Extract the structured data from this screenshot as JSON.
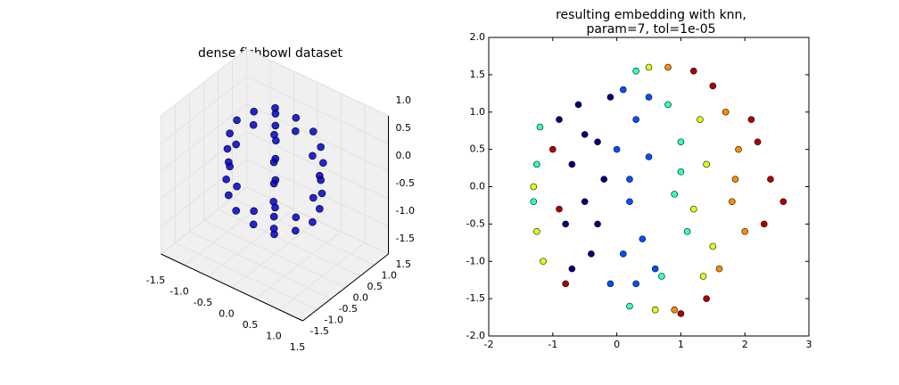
{
  "chart_data": [
    {
      "type": "scatter3d",
      "title": "dense fishbowl dataset",
      "color": "#0000cc",
      "xlim": [
        -1.5,
        1.5
      ],
      "ylim": [
        -1.5,
        1.5
      ],
      "zlim": [
        -1.5,
        1.0
      ],
      "xticks": [
        -1.5,
        {
          "value": -1,
          "label": "-1.0"
        },
        -0.5,
        {
          "value": 0,
          "label": "0.0"
        },
        0.5,
        {
          "value": 1,
          "label": "1.0"
        },
        1.5
      ],
      "yticks": [
        -1.5,
        {
          "value": -1,
          "label": "-1.0"
        },
        -0.5,
        {
          "value": 0,
          "label": "0.0"
        },
        0.5,
        {
          "value": 1,
          "label": "1.0"
        },
        1.5
      ],
      "zticks": [
        -1.5,
        {
          "value": -1,
          "label": "-1.0"
        },
        -0.5,
        {
          "value": 0,
          "label": "0.0"
        },
        0.5,
        {
          "value": 1,
          "label": "1.0"
        }
      ],
      "x": [
        0.44,
        0.22,
        -0.22,
        -0.44,
        -0.22,
        0.22,
        0.8,
        0.4,
        -0.4,
        -0.8,
        -0.4,
        0.4,
        0.95,
        0.48,
        -0.48,
        -0.95,
        -0.48,
        0.48,
        1,
        0.5,
        -0.5,
        -1,
        -0.5,
        0.5,
        0.95,
        0.48,
        -0.48,
        -0.95,
        -0.48,
        0.48,
        0.8,
        0.4,
        -0.4,
        -0.8,
        -0.4,
        0.4,
        0.44,
        0.22,
        -0.22,
        -0.44,
        -0.22,
        0.22
      ],
      "y": [
        0,
        0.38,
        0.38,
        0,
        -0.38,
        -0.38,
        0,
        0.69,
        0.69,
        0,
        -0.69,
        -0.69,
        0,
        0.82,
        0.82,
        0,
        -0.82,
        -0.82,
        0,
        0.87,
        0.87,
        0,
        -0.87,
        -0.87,
        0,
        0.82,
        0.82,
        0,
        -0.82,
        -0.82,
        0,
        0.69,
        0.69,
        0,
        -0.69,
        -0.69,
        0,
        0.38,
        0.38,
        0,
        -0.38,
        -0.38
      ],
      "z": [
        0.9,
        0.9,
        0.9,
        0.9,
        0.9,
        0.9,
        0.6,
        0.6,
        0.6,
        0.6,
        0.6,
        0.6,
        0.3,
        0.3,
        0.3,
        0.3,
        0.3,
        0.3,
        0,
        0,
        0,
        0,
        0,
        0,
        -0.3,
        -0.3,
        -0.3,
        -0.3,
        -0.3,
        -0.3,
        -0.6,
        -0.6,
        -0.6,
        -0.6,
        -0.6,
        -0.6,
        -0.9,
        -0.9,
        -0.9,
        -0.9,
        -0.9,
        -0.9
      ]
    },
    {
      "type": "scatter",
      "title": [
        "resulting embedding with knn,",
        "param=7, tol=1e-05"
      ],
      "xlim": [
        -2,
        3
      ],
      "ylim": [
        -2,
        2
      ],
      "xticks": [
        -2,
        -1,
        0,
        1,
        2,
        3
      ],
      "yticks": [
        {
          "value": -2,
          "label": "-2.0"
        },
        -1.5,
        {
          "value": -1,
          "label": "-1.0"
        },
        -0.5,
        {
          "value": 0,
          "label": "0.0"
        },
        0.5,
        {
          "value": 1,
          "label": "1.0"
        },
        1.5,
        {
          "value": 2,
          "label": "2.0"
        }
      ],
      "series": [
        {
          "color": "#00007f",
          "x": [
            -0.9,
            -0.7,
            -0.5,
            -0.3,
            -0.8,
            -0.6,
            -0.4,
            -0.2,
            -0.7,
            -0.5,
            -0.3,
            -0.1
          ],
          "y": [
            0.9,
            0.3,
            -0.2,
            0.6,
            -0.5,
            1.1,
            -0.9,
            0.1,
            -1.1,
            0.7,
            -0.5,
            1.2
          ]
        },
        {
          "color": "#0050ff",
          "x": [
            0.1,
            0.3,
            0.5,
            0.2,
            0.4,
            0.6,
            0.0,
            0.3,
            0.5,
            0.1,
            -0.1,
            0.2
          ],
          "y": [
            1.3,
            0.9,
            0.4,
            -0.2,
            -0.7,
            -1.1,
            0.5,
            -1.3,
            1.2,
            -0.9,
            -1.3,
            0.1
          ]
        },
        {
          "color": "#30ffc7",
          "x": [
            0.8,
            1.0,
            0.9,
            1.1,
            0.7,
            1.0,
            -1.25,
            -1.3,
            -1.2,
            0.2,
            0.3
          ],
          "y": [
            1.1,
            0.6,
            -0.1,
            -0.6,
            -1.2,
            0.2,
            0.3,
            -0.2,
            0.8,
            -1.6,
            1.55
          ]
        },
        {
          "color": "#e0ff18",
          "x": [
            1.3,
            1.4,
            1.2,
            1.5,
            1.35,
            -1.3,
            -1.25,
            -1.15,
            0.5,
            0.6
          ],
          "y": [
            0.9,
            0.3,
            -0.3,
            -0.8,
            -1.2,
            0.0,
            -0.6,
            -1.0,
            1.6,
            -1.65
          ]
        },
        {
          "color": "#ff8c00",
          "x": [
            1.7,
            1.9,
            1.8,
            2.0,
            1.6,
            1.85,
            0.8,
            0.9
          ],
          "y": [
            1.0,
            0.5,
            -0.2,
            -0.6,
            -1.1,
            0.1,
            1.6,
            -1.65
          ]
        },
        {
          "color": "#b00000",
          "x": [
            2.2,
            2.4,
            2.6,
            2.3,
            2.1,
            1.5,
            1.2,
            -1.0,
            -0.8,
            1.4,
            1.0,
            -0.9
          ],
          "y": [
            0.6,
            0.1,
            -0.2,
            -0.5,
            0.9,
            1.35,
            1.55,
            0.5,
            -1.3,
            -1.5,
            -1.7,
            -0.3
          ]
        }
      ]
    }
  ]
}
